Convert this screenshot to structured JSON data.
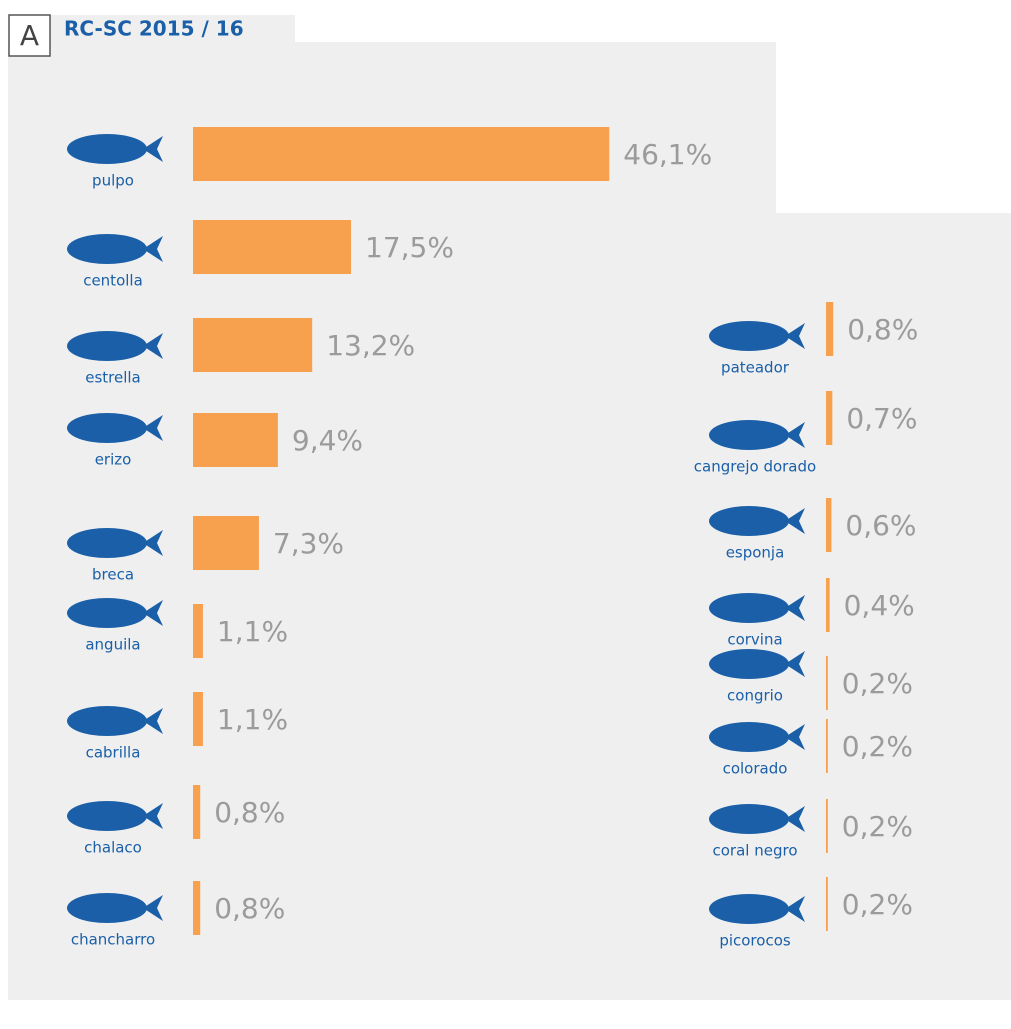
{
  "header": {
    "panel": "A",
    "title": "RC-SC 2015 / 16"
  },
  "chart_data": [
    {
      "type": "bar",
      "orientation": "horizontal",
      "color": "#f7a04d",
      "categories": [
        "pulpo",
        "centolla",
        "estrella",
        "erizo",
        "breca",
        "anguila",
        "cabrilla",
        "chalaco",
        "chancharro"
      ],
      "values": [
        46.1,
        17.5,
        13.2,
        9.4,
        7.3,
        1.1,
        1.1,
        0.8,
        0.8
      ],
      "value_labels": [
        "46,1%",
        "17,5%",
        "13,2%",
        "9,4%",
        "7,3%",
        "1,1%",
        "1,1%",
        "0,8%",
        "0,8%"
      ]
    },
    {
      "type": "bar",
      "orientation": "horizontal",
      "color": "#f7a04d",
      "categories": [
        "pateador",
        "cangrejo dorado",
        "esponja",
        "corvina",
        "congrio",
        "colorado",
        "coral negro",
        "picorocos"
      ],
      "values": [
        0.8,
        0.7,
        0.6,
        0.4,
        0.2,
        0.2,
        0.2,
        0.2
      ],
      "value_labels": [
        "0,8%",
        "0,7%",
        "0,6%",
        "0,4%",
        "0,2%",
        "0,2%",
        "0,2%",
        "0,2%"
      ]
    }
  ]
}
